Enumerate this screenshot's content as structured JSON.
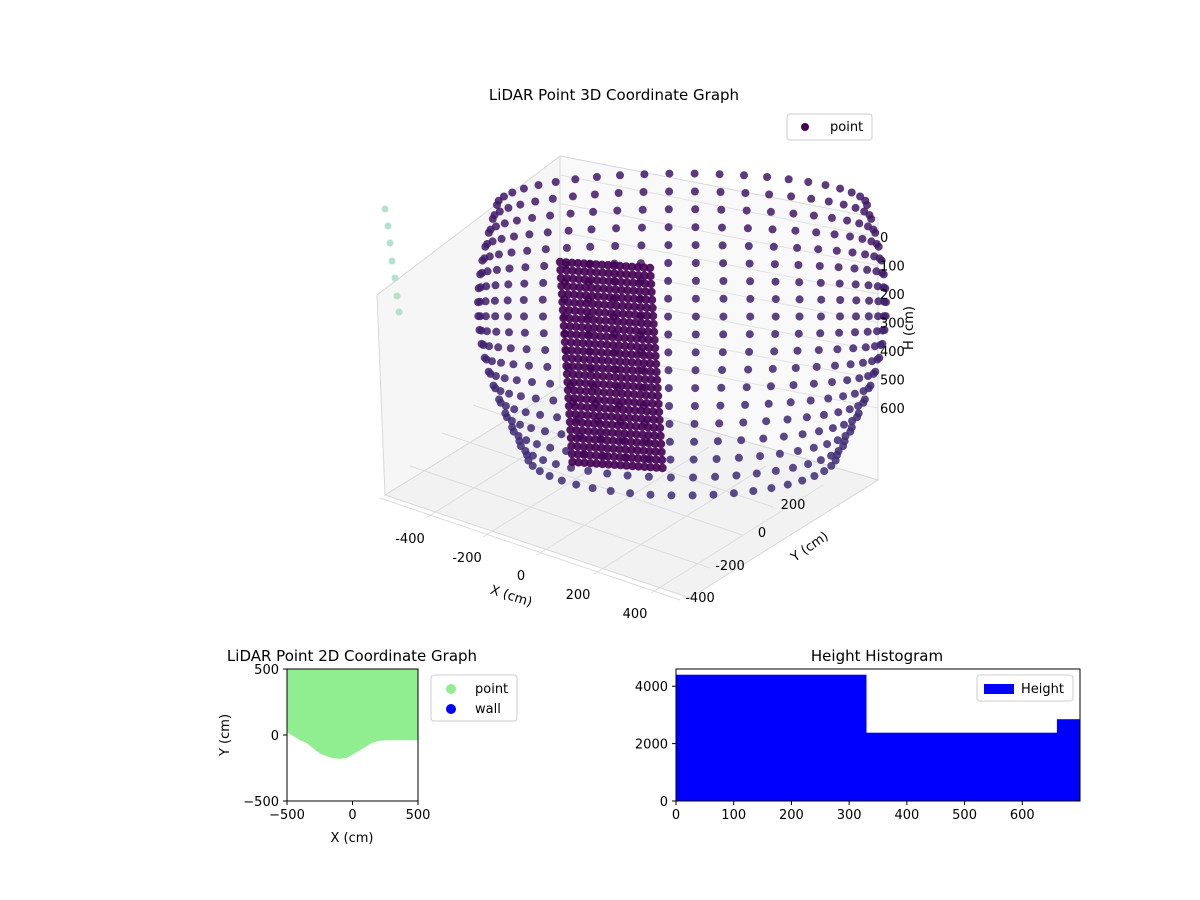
{
  "chart_data": [
    {
      "type": "scatter",
      "projection": "3d",
      "title": "LiDAR Point 3D Coordinate Graph",
      "xlabel": "X (cm)",
      "ylabel": "Y (cm)",
      "zlabel": "H (cm)",
      "x_ticks": [
        "-400",
        "-200",
        "0",
        "200",
        "400"
      ],
      "y_ticks": [
        "200",
        "0",
        "-200",
        "-400"
      ],
      "z_ticks": [
        "0",
        "100",
        "200",
        "300",
        "400",
        "500",
        "600"
      ],
      "xlim": [
        -500,
        500
      ],
      "ylim": [
        -500,
        300
      ],
      "zlim": [
        700,
        0
      ],
      "grid": true,
      "legend": {
        "location": "upper-right",
        "entries": [
          "point"
        ]
      },
      "series": [
        {
          "name": "point",
          "color": "#3b3e86",
          "structure": {
            "rings": 24,
            "ring_radius_cm": 430,
            "ring_center": [
              0,
              0
            ],
            "height_range": [
              0,
              650
            ],
            "dense_wall": {
              "x_range": [
                -250,
                -50
              ],
              "y": -150,
              "height_range": [
                0,
                620
              ]
            }
          }
        },
        {
          "name": "",
          "color": "#a8dcc5",
          "points": [
            [
              -480,
              180,
              40
            ],
            [
              -478,
              185,
              110
            ],
            [
              -475,
              190,
              180
            ],
            [
              -472,
              195,
              250
            ],
            [
              -468,
              200,
              320
            ],
            [
              -465,
              205,
              380
            ],
            [
              -462,
              210,
              440
            ]
          ]
        }
      ]
    },
    {
      "type": "scatter",
      "title": "LiDAR Point 2D Coordinate Graph",
      "xlabel": "X (cm)",
      "ylabel": "Y (cm)",
      "xlim": [
        -500,
        500
      ],
      "ylim": [
        -500,
        500
      ],
      "x_ticks": [
        "−500",
        "0",
        "500"
      ],
      "y_ticks": [
        "500",
        "0",
        "−500"
      ],
      "legend": {
        "location": "outside-right",
        "entries": [
          "point",
          "wall"
        ]
      },
      "series": [
        {
          "name": "point",
          "color": "#90ee90",
          "region_lower_boundary": [
            [
              -500,
              20
            ],
            [
              -450,
              -10
            ],
            [
              -400,
              -40
            ],
            [
              -350,
              -60
            ],
            [
              -300,
              -100
            ],
            [
              -250,
              -140
            ],
            [
              -200,
              -160
            ],
            [
              -150,
              -175
            ],
            [
              -100,
              -180
            ],
            [
              -50,
              -175
            ],
            [
              0,
              -150
            ],
            [
              50,
              -120
            ],
            [
              100,
              -90
            ],
            [
              150,
              -60
            ],
            [
              200,
              -45
            ],
            [
              250,
              -40
            ],
            [
              500,
              -40
            ]
          ],
          "region_top": 500
        },
        {
          "name": "wall",
          "color": "#0000ff",
          "points": []
        }
      ]
    },
    {
      "type": "bar",
      "title": "Height Histogram",
      "xlim": [
        0,
        700
      ],
      "ylim": [
        0,
        4600
      ],
      "x_ticks": [
        "0",
        "100",
        "200",
        "300",
        "400",
        "500",
        "600"
      ],
      "y_ticks": [
        "0",
        "2000",
        "4000"
      ],
      "legend": {
        "location": "upper-right",
        "entries": [
          "Height"
        ]
      },
      "series": [
        {
          "name": "Height",
          "color": "#0000ff",
          "bins": [
            {
              "start": 0,
              "end": 330,
              "count": 4400
            },
            {
              "start": 330,
              "end": 660,
              "count": 2380
            },
            {
              "start": 660,
              "end": 700,
              "count": 2850
            }
          ]
        }
      ]
    }
  ]
}
